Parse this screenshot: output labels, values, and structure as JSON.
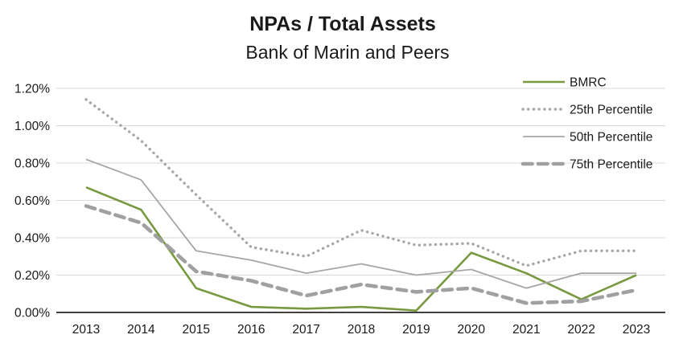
{
  "header": {
    "title": "NPAs / Total Assets",
    "subtitle": "Bank of Marin and Peers"
  },
  "chart_data": {
    "type": "line",
    "title": "NPAs / Total Assets",
    "subtitle": "Bank of Marin and Peers",
    "xlabel": "",
    "ylabel": "",
    "x": [
      2013,
      2014,
      2015,
      2016,
      2017,
      2018,
      2019,
      2020,
      2021,
      2022,
      2023
    ],
    "series": [
      {
        "name": "BMRC",
        "color": "#78993f",
        "style": "solid",
        "width": 2.6,
        "values": [
          0.67,
          0.55,
          0.13,
          0.03,
          0.02,
          0.03,
          0.01,
          0.32,
          0.21,
          0.07,
          0.2
        ]
      },
      {
        "name": "25th Percentile",
        "color": "#a6a6a6",
        "style": "dotted",
        "width": 3.4,
        "values": [
          1.14,
          0.92,
          0.63,
          0.35,
          0.3,
          0.44,
          0.36,
          0.37,
          0.25,
          0.33,
          0.33
        ]
      },
      {
        "name": "50th Percentile",
        "color": "#a6a6a6",
        "style": "solid",
        "width": 1.8,
        "values": [
          0.82,
          0.71,
          0.33,
          0.28,
          0.21,
          0.26,
          0.2,
          0.23,
          0.13,
          0.21,
          0.21
        ]
      },
      {
        "name": "75th Percentile",
        "color": "#a0a0a0",
        "style": "dashed",
        "width": 4.6,
        "values": [
          0.57,
          0.48,
          0.22,
          0.17,
          0.09,
          0.15,
          0.11,
          0.13,
          0.05,
          0.06,
          0.12
        ]
      }
    ],
    "y_ticks": [
      {
        "label": "1.20%",
        "value": 1.2
      },
      {
        "label": "1.00%",
        "value": 1.0
      },
      {
        "label": "0.80%",
        "value": 0.8
      },
      {
        "label": "0.60%",
        "value": 0.6
      },
      {
        "label": "0.40%",
        "value": 0.4
      },
      {
        "label": "0.20%",
        "value": 0.2
      },
      {
        "label": "0.00%",
        "value": 0.0
      }
    ],
    "ylim": [
      0,
      1.2
    ],
    "y_unit": "%",
    "grid": true,
    "legend_position": "top-right",
    "colors": {
      "grid_line": "#d9d9d9",
      "axis_line": "#000000",
      "text": "#1a1a1a"
    }
  }
}
